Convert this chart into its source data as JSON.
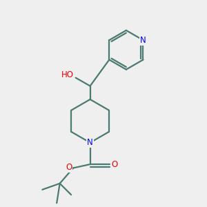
{
  "background_color": "#efefef",
  "bond_color": "#4a7a70",
  "n_color": "#0000ee",
  "o_color": "#ee0000",
  "line_width": 1.6,
  "fig_size": [
    3.0,
    3.0
  ],
  "dpi": 100,
  "xlim": [
    0,
    10
  ],
  "ylim": [
    0,
    10
  ]
}
